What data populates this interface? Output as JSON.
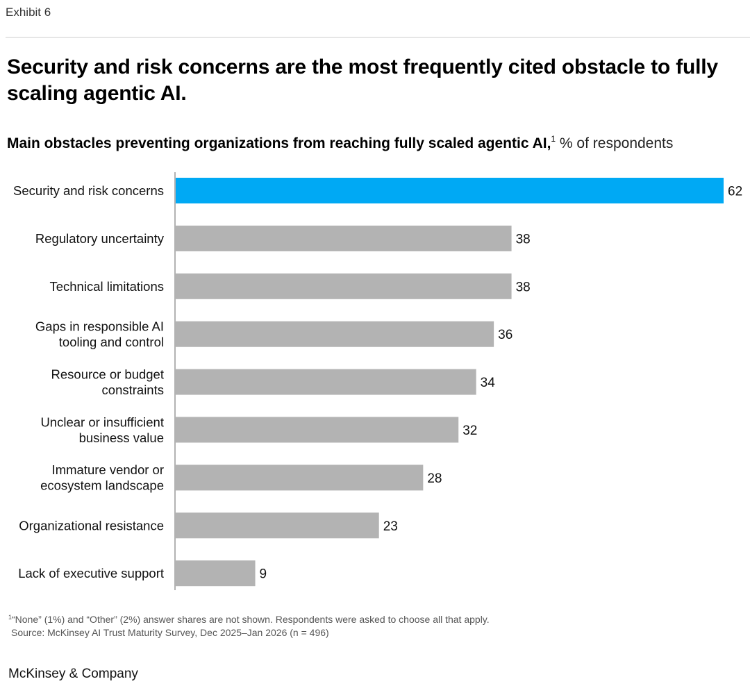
{
  "exhibit_label": "Exhibit 6",
  "headline": "Security and risk concerns are the most frequently cited obstacle to fully scaling agentic AI.",
  "subtitle": {
    "main": "Main obstacles preventing organizations from reaching fully scaled agentic AI,",
    "marker": "1",
    "unit": " % of respondents"
  },
  "footnote": {
    "marker": "1",
    "text": "“None” (1%) and “Other” (2%) answer shares are not shown. Respondents were asked to choose all that apply.",
    "source": "Source: McKinsey AI Trust Maturity Survey, Dec 2025–Jan 2026 (n = 496)"
  },
  "brand": "McKinsey & Company",
  "colors": {
    "highlight": "#00A9F4",
    "bar": "#B3B3B3",
    "axis": "#666666"
  },
  "chart_data": {
    "type": "bar",
    "orientation": "horizontal",
    "title": "Main obstacles preventing organizations from reaching fully scaled agentic AI",
    "unit": "% of respondents",
    "xlim": [
      0,
      62
    ],
    "categories": [
      [
        "Security and risk concerns"
      ],
      [
        "Regulatory uncertainty"
      ],
      [
        "Technical limitations"
      ],
      [
        "Gaps in responsible AI",
        "tooling and control"
      ],
      [
        "Resource or budget",
        "constraints"
      ],
      [
        "Unclear or insufficient",
        "business value"
      ],
      [
        "Immature vendor or",
        "ecosystem landscape"
      ],
      [
        "Organizational resistance"
      ],
      [
        "Lack of executive support"
      ]
    ],
    "values": [
      62,
      38,
      38,
      36,
      34,
      32,
      28,
      23,
      9
    ],
    "highlight_index": 0
  }
}
